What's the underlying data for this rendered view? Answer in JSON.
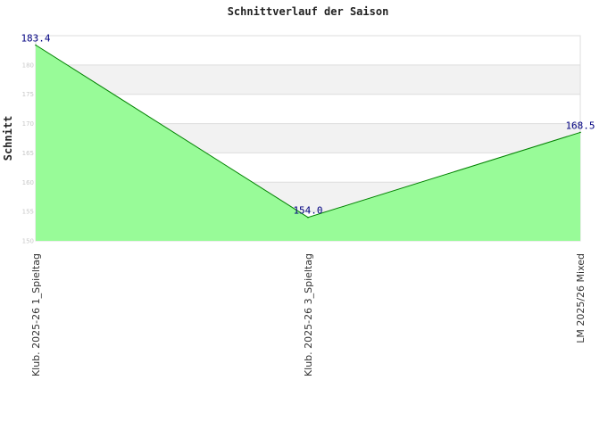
{
  "chart_data": {
    "type": "area",
    "title": "Schnittverlauf der Saison",
    "xlabel": "",
    "ylabel": "Schnitt",
    "categories": [
      "Klub. 2025-26  1_Spieltag",
      "Klub. 2025-26  3_Spieltag",
      "LM 2025/26 Mixed"
    ],
    "series": [
      {
        "values": [
          183.4,
          154.0,
          168.5
        ],
        "labels": [
          "183.4",
          "154.0",
          "168.5"
        ]
      }
    ],
    "yticks": [
      150,
      155,
      160,
      165,
      170,
      175,
      180
    ],
    "ytick_labels": [
      "150",
      "155",
      "160",
      "165",
      "170",
      "175",
      "180"
    ],
    "ylim": [
      150,
      185
    ],
    "grid": true,
    "colors": {
      "fill": "#98fb98",
      "line": "#008000",
      "band": "#f2f2f2",
      "grid": "#dddddd",
      "label": "#000080"
    }
  }
}
